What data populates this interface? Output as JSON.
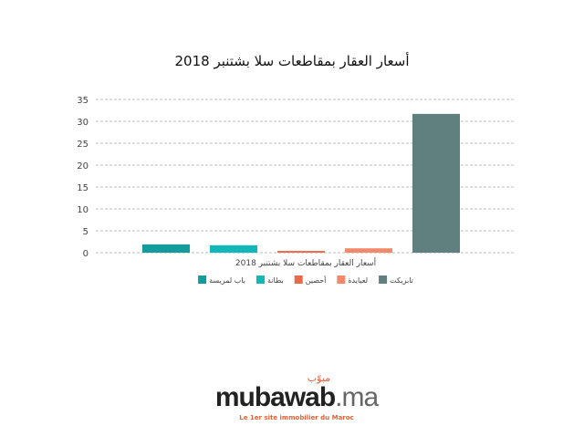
{
  "chart_data": {
    "type": "bar",
    "title": "أسعار العقار بمقاطعات سلا بشتنبر 2018",
    "xlabel": "أسعار العقار بمقاطعات سلا بشتنبر 2018",
    "ylabel": "",
    "ylim": [
      0,
      35
    ],
    "yticks": [
      0,
      5,
      10,
      15,
      20,
      25,
      30,
      35
    ],
    "grid": true,
    "legend": "bottom",
    "series": [
      {
        "name": "باب لمريسة",
        "value": 1.9,
        "color": "#129c9c"
      },
      {
        "name": "بطانة",
        "value": 1.7,
        "color": "#12b8b8"
      },
      {
        "name": "أحصين",
        "value": 0.4,
        "color": "#e86a4a"
      },
      {
        "name": "لعيايدة",
        "value": 1.0,
        "color": "#f28a6a"
      },
      {
        "name": "تابريكت",
        "value": 31.7,
        "color": "#607f7f"
      }
    ]
  },
  "logo": {
    "arabic": "مبوّب",
    "name": "mubawab",
    "tld": ".ma",
    "tagline": "Le 1er site immobilier du Maroc"
  }
}
